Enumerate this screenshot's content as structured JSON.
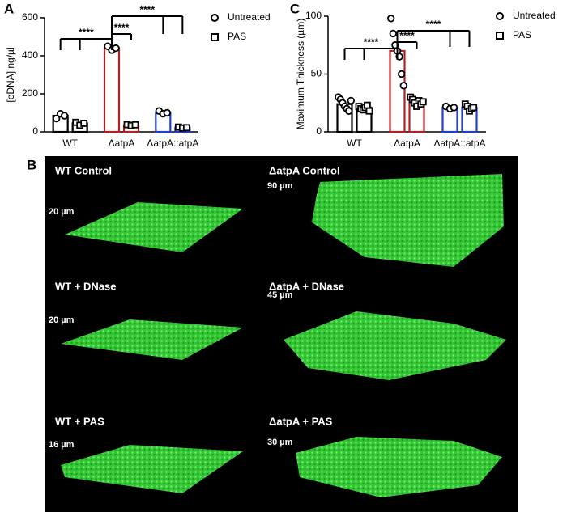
{
  "chart_data": [
    {
      "type": "bar",
      "panel_label": "A",
      "y_label": "[eDNA] ng/µl",
      "categories": [
        "WT",
        "ΔatpA",
        "ΔatpA::atpA"
      ],
      "category_colors": [
        "#000000",
        "#b22222",
        "#1f3fcf"
      ],
      "series": [
        {
          "name": "Untreated",
          "marker": "circle",
          "color": "#000000",
          "values": [
            85,
            440,
            100
          ],
          "points": [
            [
              70,
              95,
              85
            ],
            [
              450,
              430,
              440
            ],
            [
              110,
              95,
              100
            ]
          ]
        },
        {
          "name": "PAS",
          "marker": "square",
          "color": "#000000",
          "values": [
            45,
            35,
            22
          ],
          "points": [
            [
              50,
              35,
              45
            ],
            [
              38,
              33,
              37
            ],
            [
              25,
              20,
              22
            ]
          ]
        }
      ],
      "ylim": [
        0,
        600
      ],
      "yticks": [
        0,
        200,
        400,
        600
      ],
      "annotations": [
        "****",
        "****",
        "****"
      ],
      "legend": "right"
    },
    {
      "type": "bar",
      "panel_label": "C",
      "y_label": "Maximum Thickness (µm)",
      "categories": [
        "WT",
        "ΔatpA",
        "ΔatpA::atpA"
      ],
      "category_colors": [
        "#000000",
        "#b22222",
        "#1f3fcf"
      ],
      "series": [
        {
          "name": "Untreated",
          "marker": "circle",
          "color": "#000000",
          "values": [
            24,
            70,
            21
          ],
          "points": [
            [
              30,
              28,
              25,
              22,
              20,
              18,
              27
            ],
            [
              98,
              85,
              75,
              70,
              65,
              50,
              40
            ],
            [
              22,
              20,
              21
            ]
          ]
        },
        {
          "name": "PAS",
          "marker": "square",
          "color": "#000000",
          "values": [
            21,
            26,
            21
          ],
          "points": [
            [
              22,
              20,
              19,
              21,
              23,
              18
            ],
            [
              30,
              28,
              25,
              22,
              27,
              24,
              26
            ],
            [
              24,
              22,
              18,
              20,
              21
            ]
          ]
        }
      ],
      "ylim": [
        0,
        100
      ],
      "yticks": [
        0,
        50,
        100
      ],
      "annotations": [
        "****",
        "****",
        "****"
      ],
      "legend": "right"
    }
  ],
  "panel_b": {
    "label": "B",
    "tiles": [
      {
        "title": "WT Control",
        "thickness": "20 µm"
      },
      {
        "title": "ΔatpA Control",
        "thickness": "90 µm"
      },
      {
        "title": "WT + DNase",
        "thickness": "20 µm"
      },
      {
        "title": "ΔatpA + DNase",
        "thickness": "45 µm"
      },
      {
        "title": "WT + PAS",
        "thickness": "16 µm"
      },
      {
        "title": "ΔatpA + PAS",
        "thickness": "30 µm"
      }
    ]
  }
}
